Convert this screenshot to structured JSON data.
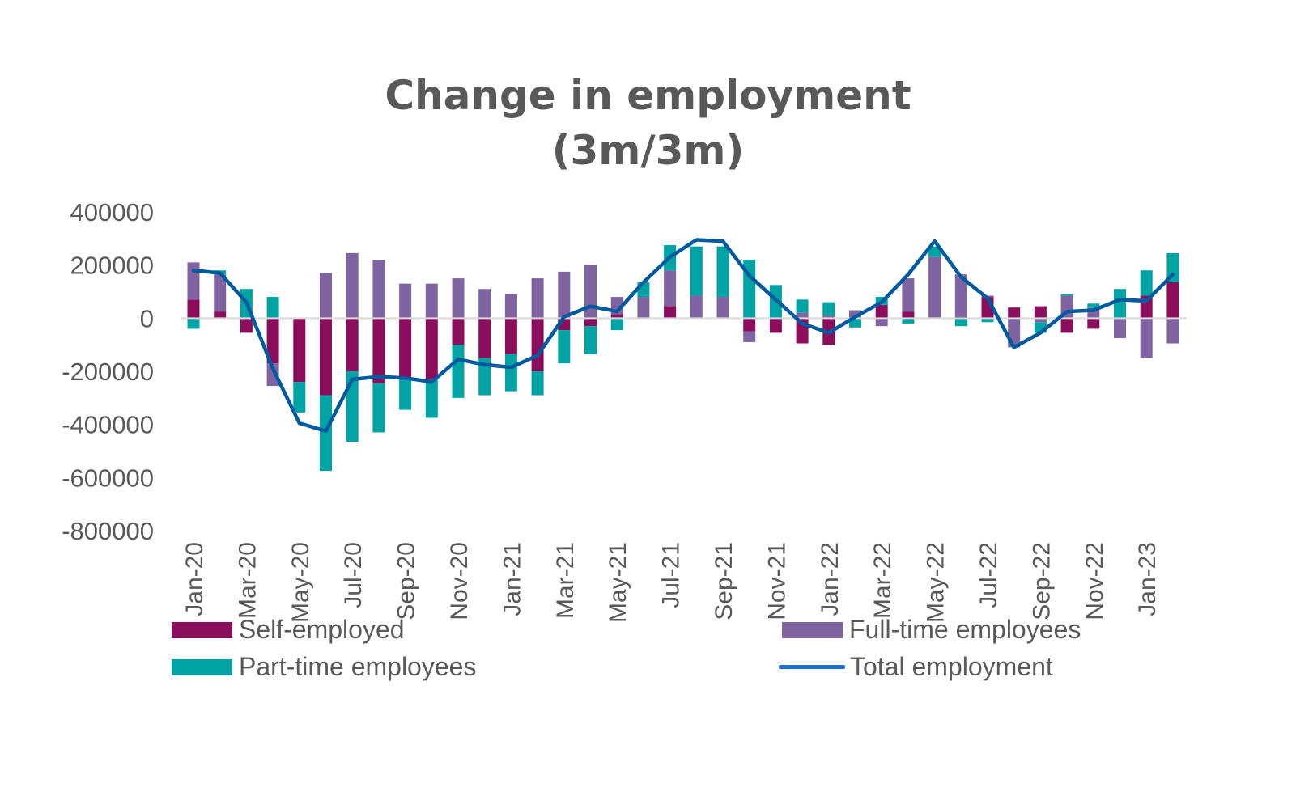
{
  "chart_data": {
    "type": "bar",
    "stacked": true,
    "title": [
      "Change in employment",
      "(3m/3m)"
    ],
    "xlabel": "",
    "ylabel": "",
    "ylim": [
      -800000,
      400000
    ],
    "yticks": [
      400000,
      200000,
      0,
      -200000,
      -400000,
      -600000,
      -800000
    ],
    "ytick_labels": [
      "400000",
      "200000",
      "0",
      "-200000",
      "-400000",
      "-600000",
      "-800000"
    ],
    "categories": [
      "Jan-20",
      "Feb-20",
      "Mar-20",
      "Apr-20",
      "May-20",
      "Jun-20",
      "Jul-20",
      "Aug-20",
      "Sep-20",
      "Oct-20",
      "Nov-20",
      "Dec-20",
      "Jan-21",
      "Feb-21",
      "Mar-21",
      "Apr-21",
      "May-21",
      "Jun-21",
      "Jul-21",
      "Aug-21",
      "Sep-21",
      "Oct-21",
      "Nov-21",
      "Dec-21",
      "Jan-22",
      "Feb-22",
      "Mar-22",
      "Apr-22",
      "May-22",
      "Jun-22",
      "Jul-22",
      "Aug-22",
      "Sep-22",
      "Oct-22",
      "Nov-22",
      "Dec-22",
      "Jan-23",
      "Feb-23"
    ],
    "tick_labels": [
      "Jan-20",
      "Mar-20",
      "May-20",
      "Jul-20",
      "Sep-20",
      "Nov-20",
      "Jan-21",
      "Mar-21",
      "May-21",
      "Jul-21",
      "Sep-21",
      "Nov-21",
      "Jan-22",
      "Mar-22",
      "May-22",
      "Jul-22",
      "Sep-22",
      "Nov-22",
      "Jan-23"
    ],
    "series": [
      {
        "name": "Self-employed",
        "kind": "bar",
        "color": "#8B0E5C",
        "values": [
          70000,
          25000,
          -55000,
          -170000,
          -240000,
          -290000,
          -200000,
          -245000,
          -225000,
          -230000,
          -100000,
          -150000,
          -135000,
          -200000,
          -45000,
          -30000,
          15000,
          0,
          45000,
          0,
          0,
          -50000,
          -55000,
          -95000,
          -100000,
          0,
          50000,
          25000,
          0,
          5000,
          80000,
          40000,
          45000,
          -55000,
          -40000,
          0,
          85000,
          135000
        ]
      },
      {
        "name": "Full-time employees",
        "kind": "bar",
        "color": "#8064A2",
        "values": [
          140000,
          140000,
          0,
          -85000,
          0,
          170000,
          245000,
          220000,
          130000,
          130000,
          150000,
          110000,
          90000,
          150000,
          175000,
          200000,
          65000,
          80000,
          135000,
          85000,
          80000,
          -40000,
          0,
          20000,
          10000,
          30000,
          -30000,
          125000,
          230000,
          160000,
          5000,
          -110000,
          -15000,
          85000,
          40000,
          -75000,
          -150000,
          -95000
        ]
      },
      {
        "name": "Part-time employees",
        "kind": "bar",
        "color": "#00A3A3",
        "values": [
          -40000,
          15000,
          110000,
          80000,
          -115000,
          -285000,
          -265000,
          -185000,
          -120000,
          -145000,
          -200000,
          -140000,
          -140000,
          -90000,
          -125000,
          -105000,
          -45000,
          55000,
          95000,
          185000,
          190000,
          220000,
          125000,
          50000,
          50000,
          -35000,
          30000,
          -20000,
          40000,
          -30000,
          -15000,
          0,
          -40000,
          5000,
          15000,
          110000,
          95000,
          110000
        ]
      },
      {
        "name": "Total employment",
        "kind": "line",
        "color": "#005AA0",
        "values": [
          180000,
          170000,
          60000,
          -190000,
          -395000,
          -425000,
          -230000,
          -220000,
          -225000,
          -240000,
          -155000,
          -175000,
          -185000,
          -140000,
          5000,
          45000,
          25000,
          135000,
          230000,
          295000,
          290000,
          160000,
          70000,
          -20000,
          -55000,
          5000,
          60000,
          165000,
          290000,
          155000,
          75000,
          -110000,
          -55000,
          25000,
          30000,
          70000,
          65000,
          165000
        ]
      }
    ],
    "legend_position": "bottom",
    "grid": false
  }
}
